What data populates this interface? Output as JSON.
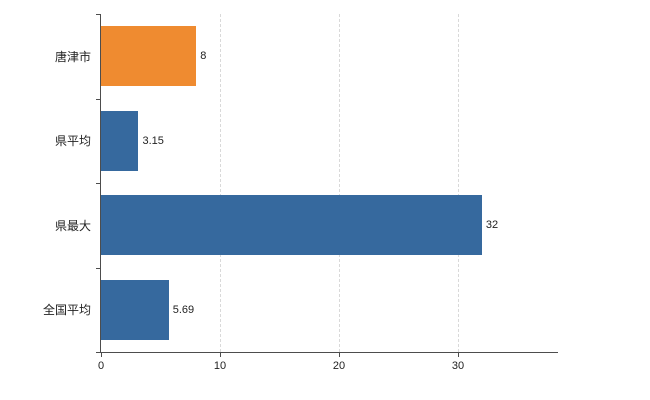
{
  "chart_data": {
    "type": "bar",
    "orientation": "horizontal",
    "title": "",
    "xlabel": "",
    "ylabel": "",
    "categories": [
      "唐津市",
      "県平均",
      "県最大",
      "全国平均"
    ],
    "values": [
      8,
      3.15,
      32,
      5.69
    ],
    "value_labels": [
      "8",
      "3.15",
      "32",
      "5.69"
    ],
    "bar_colors": [
      "#ef8b30",
      "#36699e",
      "#36699e",
      "#36699e"
    ],
    "x_ticks": [
      0,
      10,
      20,
      30
    ],
    "x_tick_labels": [
      "0",
      "10",
      "20",
      "30"
    ],
    "xlim": [
      0,
      38.4
    ],
    "grid": true,
    "legend": "none",
    "axis_color": "#4d4d4d",
    "gridline_color": "#d9d9d9",
    "background_color": "#ffffff"
  }
}
